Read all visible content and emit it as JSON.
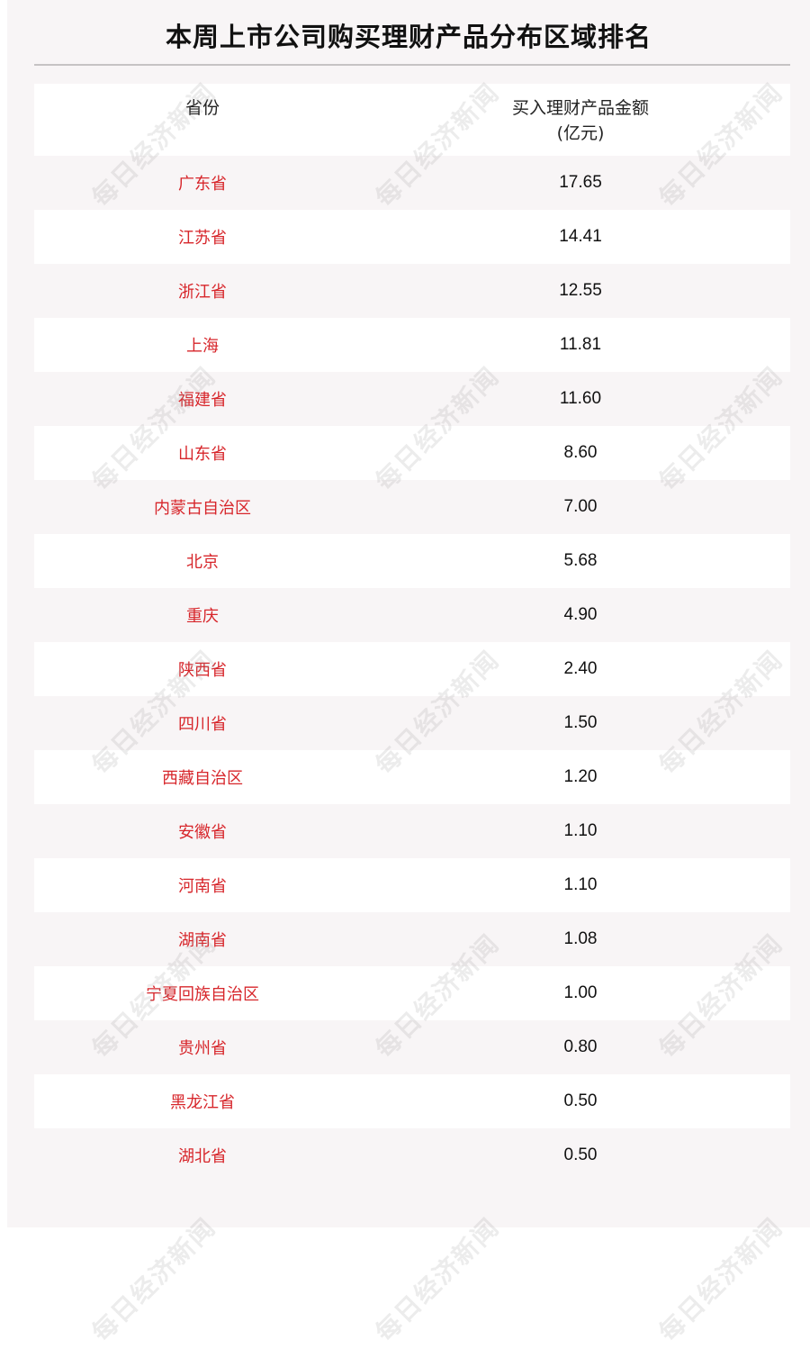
{
  "title": "本周上市公司购买理财产品分布区域排名",
  "watermark": "每日经济新闻",
  "colors": {
    "province_text": "#d7262b",
    "background": "#f8f5f6"
  },
  "table": {
    "headers": [
      "省份",
      "买入理财产品金额",
      "(亿元)"
    ],
    "rows": [
      {
        "province": "广东省",
        "amount": "17.65"
      },
      {
        "province": "江苏省",
        "amount": "14.41"
      },
      {
        "province": "浙江省",
        "amount": "12.55"
      },
      {
        "province": "上海",
        "amount": "11.81"
      },
      {
        "province": "福建省",
        "amount": "11.60"
      },
      {
        "province": "山东省",
        "amount": "8.60"
      },
      {
        "province": "内蒙古自治区",
        "amount": "7.00"
      },
      {
        "province": "北京",
        "amount": "5.68"
      },
      {
        "province": "重庆",
        "amount": "4.90"
      },
      {
        "province": "陕西省",
        "amount": "2.40"
      },
      {
        "province": "四川省",
        "amount": "1.50"
      },
      {
        "province": "西藏自治区",
        "amount": "1.20"
      },
      {
        "province": "安徽省",
        "amount": "1.10"
      },
      {
        "province": "河南省",
        "amount": "1.10"
      },
      {
        "province": "湖南省",
        "amount": "1.08"
      },
      {
        "province": "宁夏回族自治区",
        "amount": "1.00"
      },
      {
        "province": "贵州省",
        "amount": "0.80"
      },
      {
        "province": "黑龙江省",
        "amount": "0.50"
      },
      {
        "province": "湖北省",
        "amount": "0.50"
      }
    ]
  }
}
